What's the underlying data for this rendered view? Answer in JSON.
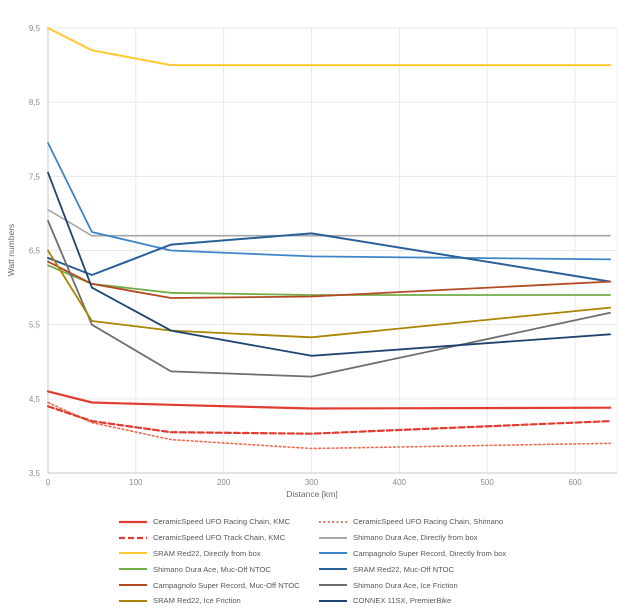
{
  "chart_data": {
    "type": "line",
    "title": "",
    "xlabel": "Distance [km]",
    "ylabel": "Watt numbers",
    "x": [
      0,
      50,
      140,
      300,
      640
    ],
    "xlim": [
      0,
      650
    ],
    "ylim": [
      3.5,
      9.5
    ],
    "x_ticks": [
      0,
      100,
      200,
      300,
      400,
      500,
      600
    ],
    "y_ticks": [
      3.5,
      4.5,
      5.5,
      6.5,
      7.5,
      8.5,
      9.5
    ],
    "y_tick_labels": [
      "3,5",
      "4,5",
      "5,5",
      "6,5",
      "7,5",
      "8,5",
      "9,5"
    ],
    "grid": true,
    "legend_position": "bottom",
    "series": [
      {
        "name": "CeramicSpeed UFO Racing Chain, KMC",
        "color": "#e03c31",
        "dash": "solid",
        "width": 2.2,
        "values": [
          4.6,
          4.45,
          4.42,
          4.37,
          4.38
        ]
      },
      {
        "name": "CeramicSpeed UFO Racing Chain, Shimano",
        "color": "#ed6a50",
        "dash": "dot",
        "width": 1.6,
        "values": [
          4.45,
          4.18,
          3.95,
          3.83,
          3.9
        ]
      },
      {
        "name": "CeramicSpeed UFO Track Chain, KMC",
        "color": "#e03c31",
        "dash": "dash",
        "width": 2.2,
        "values": [
          4.4,
          4.2,
          4.05,
          4.03,
          4.2
        ]
      },
      {
        "name": "Shimano Dura Ace, Directly from box",
        "color": "#a6a6a6",
        "dash": "solid",
        "width": 1.6,
        "values": [
          7.05,
          6.7,
          6.7,
          6.7,
          6.7
        ]
      },
      {
        "name": "SRAM Red22, Directly from box",
        "color": "#ffc930",
        "dash": "solid",
        "width": 2.0,
        "values": [
          9.5,
          9.2,
          9.0,
          9.0,
          9.0
        ]
      },
      {
        "name": "Campagnolo Super Record, Directly from box",
        "color": "#3c85c6",
        "dash": "solid",
        "width": 1.8,
        "values": [
          7.95,
          6.75,
          6.5,
          6.42,
          6.38
        ]
      },
      {
        "name": "Shimano Dura Ace, Muc-Off NTOC",
        "color": "#70ad47",
        "dash": "solid",
        "width": 1.8,
        "values": [
          6.3,
          6.05,
          5.93,
          5.9,
          5.9
        ]
      },
      {
        "name": "SRAM Red22, Muc-Off NTOC",
        "color": "#2a6099",
        "dash": "solid",
        "width": 2.0,
        "values": [
          6.4,
          6.17,
          6.58,
          6.73,
          6.08
        ]
      },
      {
        "name": "Campagnolo Super Record, Muc-Off NTOC",
        "color": "#b44a24",
        "dash": "solid",
        "width": 1.8,
        "values": [
          6.35,
          6.05,
          5.86,
          5.88,
          6.08
        ]
      },
      {
        "name": "Shimano Dura Ace, Ice Friction",
        "color": "#6e6e6e",
        "dash": "solid",
        "width": 1.8,
        "values": [
          6.9,
          5.5,
          4.87,
          4.8,
          5.66
        ]
      },
      {
        "name": "SRAM Red22, Ice Friction",
        "color": "#a98500",
        "dash": "solid",
        "width": 1.8,
        "values": [
          6.5,
          5.55,
          5.42,
          5.33,
          5.73
        ]
      },
      {
        "name": "CONNEX 11SX, PremierBike",
        "color": "#1f4470",
        "dash": "solid",
        "width": 1.8,
        "values": [
          7.55,
          6.0,
          5.42,
          5.08,
          5.37
        ]
      }
    ]
  },
  "colors": {
    "gridline": "#e9e9e9",
    "axis_line": "#c9c9c9",
    "plot_border": "#f0f0f0",
    "tick_text": "#8c8c8c",
    "axis_title_text": "#6b6b6b",
    "legend_text": "#595959",
    "background": "#ffffff"
  }
}
